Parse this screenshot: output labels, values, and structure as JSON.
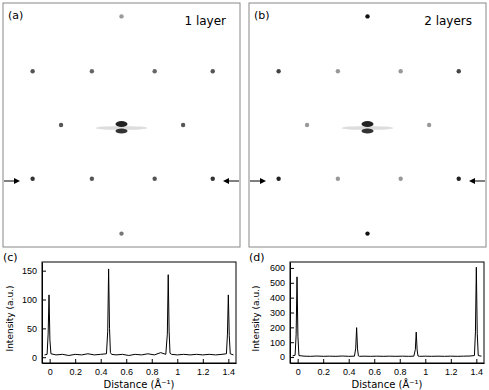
{
  "chart_data": [
    {
      "type": "scatter",
      "title": "1 layer",
      "annotations": [
        "(a)"
      ],
      "x": [
        0,
        -0.75,
        -0.25,
        0.28,
        0.77,
        -0.51,
        0.52,
        -0.75,
        -0.25,
        0.28,
        0.77,
        0
      ],
      "values": [
        0.89,
        0.44,
        0.44,
        0.44,
        0.44,
        0,
        0,
        -0.44,
        -0.44,
        -0.44,
        -0.44,
        -0.89
      ],
      "colors": [
        "#9a9a9a",
        "#555555",
        "#666666",
        "#666666",
        "#555555",
        "#555555",
        "#555555",
        "#333333",
        "#555555",
        "#555555",
        "#333333",
        "#777777"
      ],
      "marker": "circle",
      "xlim": [
        -1,
        1
      ],
      "ylim": [
        -1,
        1
      ],
      "tick_labels": false
    },
    {
      "type": "scatter",
      "title": "2 layers",
      "annotations": [
        "(b)"
      ],
      "x": [
        0,
        -0.75,
        -0.25,
        0.28,
        0.77,
        -0.51,
        0.52,
        -0.75,
        -0.25,
        0.28,
        0.77,
        0
      ],
      "values": [
        0.89,
        0.44,
        0.44,
        0.44,
        0.44,
        0,
        0,
        -0.44,
        -0.44,
        -0.44,
        -0.44,
        -0.89
      ],
      "colors": [
        "#111111",
        "#444444",
        "#999999",
        "#999999",
        "#444444",
        "#999999",
        "#999999",
        "#222222",
        "#999999",
        "#999999",
        "#222222",
        "#111111"
      ],
      "marker": "circle",
      "xlim": [
        -1,
        1
      ],
      "ylim": [
        -1,
        1
      ],
      "tick_labels": false
    },
    {
      "type": "line",
      "annotations": [
        "(c)"
      ],
      "x_label": "Distance (Å⁻¹)",
      "y_label": "Intensity (a.u.)",
      "x": [
        -0.04,
        -0.02,
        -0.012,
        -0.005,
        0.002,
        0.01,
        0.05,
        0.1,
        0.15,
        0.2,
        0.25,
        0.3,
        0.35,
        0.4,
        0.445,
        0.455,
        0.462,
        0.469,
        0.476,
        0.485,
        0.52,
        0.57,
        0.62,
        0.67,
        0.72,
        0.77,
        0.82,
        0.87,
        0.91,
        0.922,
        0.929,
        0.936,
        0.943,
        0.955,
        1.0,
        1.05,
        1.1,
        1.15,
        1.2,
        1.25,
        1.3,
        1.35,
        1.385,
        1.393,
        1.4,
        1.407,
        1.415,
        1.44
      ],
      "values": [
        4,
        5,
        40,
        108,
        30,
        6,
        4,
        5,
        3,
        5,
        4,
        6,
        4,
        5,
        6,
        45,
        153,
        50,
        8,
        5,
        4,
        5,
        3,
        5,
        4,
        6,
        4,
        8,
        5,
        40,
        143,
        45,
        7,
        5,
        4,
        5,
        4,
        5,
        4,
        5,
        4,
        5,
        6,
        40,
        108,
        38,
        6,
        4
      ],
      "color": "#000000",
      "xlim": [
        -0.06,
        1.46
      ],
      "ylim": [
        -10,
        165
      ],
      "xticks": [
        0,
        0.2,
        0.4,
        0.6,
        0.8,
        1,
        1.2,
        1.4
      ],
      "yticks": [
        0,
        50,
        100,
        150
      ]
    },
    {
      "type": "line",
      "annotations": [
        "(d)"
      ],
      "x_label": "Distance (Å⁻¹)",
      "y_label": "Intensity (a.u.)",
      "x": [
        -0.04,
        -0.02,
        -0.012,
        -0.005,
        0.002,
        0.01,
        0.05,
        0.1,
        0.15,
        0.2,
        0.25,
        0.3,
        0.35,
        0.4,
        0.445,
        0.455,
        0.462,
        0.469,
        0.476,
        0.485,
        0.52,
        0.57,
        0.62,
        0.67,
        0.72,
        0.77,
        0.82,
        0.87,
        0.91,
        0.922,
        0.929,
        0.936,
        0.943,
        0.955,
        1.0,
        1.05,
        1.1,
        1.15,
        1.2,
        1.25,
        1.3,
        1.35,
        1.385,
        1.393,
        1.4,
        1.407,
        1.415,
        1.44
      ],
      "values": [
        8,
        12,
        150,
        540,
        140,
        10,
        6,
        5,
        7,
        5,
        6,
        5,
        7,
        5,
        6,
        60,
        198,
        55,
        8,
        5,
        6,
        5,
        6,
        5,
        6,
        5,
        6,
        5,
        6,
        50,
        168,
        48,
        7,
        5,
        6,
        5,
        6,
        5,
        6,
        5,
        6,
        7,
        10,
        170,
        605,
        160,
        10,
        6
      ],
      "color": "#000000",
      "xlim": [
        -0.06,
        1.46
      ],
      "ylim": [
        -40,
        640
      ],
      "xticks": [
        0,
        0.2,
        0.4,
        0.6,
        0.8,
        1,
        1.2,
        1.4
      ],
      "yticks": [
        0,
        100,
        200,
        300,
        400,
        500,
        600
      ]
    }
  ]
}
